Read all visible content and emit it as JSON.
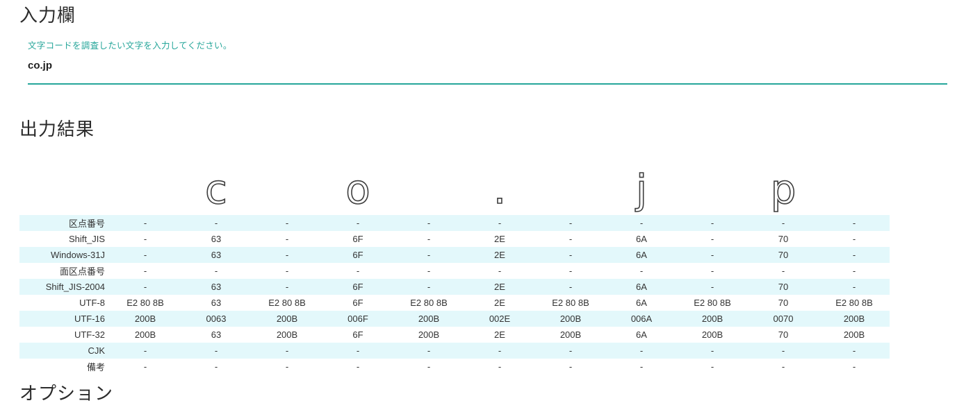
{
  "colors": {
    "accent": "#26A69A",
    "stripe": "#E3F8FB",
    "text": "#333333"
  },
  "input_section": {
    "title": "入力欄",
    "hint": "文字コードを調査したい文字を入力してください。",
    "value": "co.jp"
  },
  "output_section": {
    "title": "出力結果",
    "table": {
      "header_chars": [
        "",
        "c",
        "",
        "o",
        "",
        ".",
        "",
        "j",
        "",
        "p",
        ""
      ],
      "rows": [
        {
          "label": "区点番号",
          "values": [
            "-",
            "-",
            "-",
            "-",
            "-",
            "-",
            "-",
            "-",
            "-",
            "-",
            "-"
          ]
        },
        {
          "label": "Shift_JIS",
          "values": [
            "-",
            "63",
            "-",
            "6F",
            "-",
            "2E",
            "-",
            "6A",
            "-",
            "70",
            "-"
          ]
        },
        {
          "label": "Windows-31J",
          "values": [
            "-",
            "63",
            "-",
            "6F",
            "-",
            "2E",
            "-",
            "6A",
            "-",
            "70",
            "-"
          ]
        },
        {
          "label": "面区点番号",
          "values": [
            "-",
            "-",
            "-",
            "-",
            "-",
            "-",
            "-",
            "-",
            "-",
            "-",
            "-"
          ]
        },
        {
          "label": "Shift_JIS-2004",
          "values": [
            "-",
            "63",
            "-",
            "6F",
            "-",
            "2E",
            "-",
            "6A",
            "-",
            "70",
            "-"
          ]
        },
        {
          "label": "UTF-8",
          "values": [
            "E2 80 8B",
            "63",
            "E2 80 8B",
            "6F",
            "E2 80 8B",
            "2E",
            "E2 80 8B",
            "6A",
            "E2 80 8B",
            "70",
            "E2 80 8B"
          ]
        },
        {
          "label": "UTF-16",
          "values": [
            "200B",
            "0063",
            "200B",
            "006F",
            "200B",
            "002E",
            "200B",
            "006A",
            "200B",
            "0070",
            "200B"
          ]
        },
        {
          "label": "UTF-32",
          "values": [
            "200B",
            "63",
            "200B",
            "6F",
            "200B",
            "2E",
            "200B",
            "6A",
            "200B",
            "70",
            "200B"
          ]
        },
        {
          "label": "CJK",
          "values": [
            "-",
            "-",
            "-",
            "-",
            "-",
            "-",
            "-",
            "-",
            "-",
            "-",
            "-"
          ]
        },
        {
          "label": "備考",
          "values": [
            "-",
            "-",
            "-",
            "-",
            "-",
            "-",
            "-",
            "-",
            "-",
            "-",
            "-"
          ]
        }
      ]
    }
  },
  "options_section": {
    "title": "オプション"
  }
}
